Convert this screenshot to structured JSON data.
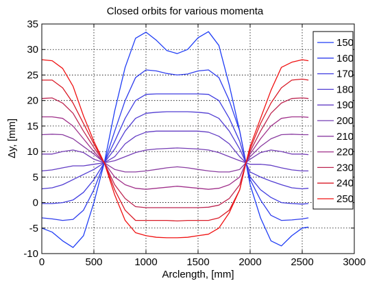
{
  "chart_data": {
    "type": "line",
    "title": "Closed orbits for various momenta",
    "xlabel": "Arclength, [mm]",
    "ylabel": "Δy, [mm]",
    "xlim": [
      0,
      3000
    ],
    "ylim": [
      -10,
      35
    ],
    "xticks": [
      0,
      500,
      1000,
      1500,
      2000,
      2500,
      3000
    ],
    "yticks": [
      -10,
      -5,
      0,
      5,
      10,
      15,
      20,
      25,
      30,
      35
    ],
    "grid": true,
    "legend_position": "right",
    "x": [
      0,
      100,
      200,
      300,
      400,
      500,
      600,
      700,
      800,
      900,
      1000,
      1100,
      1200,
      1300,
      1400,
      1500,
      1600,
      1700,
      1800,
      1900,
      1960,
      2000,
      2100,
      2200,
      2300,
      2400,
      2500,
      2560
    ],
    "series": [
      {
        "name": "150",
        "color": "#1e3cf5",
        "values": [
          -5.0,
          -5.8,
          -7.5,
          -8.8,
          -6.5,
          0.0,
          7.8,
          18.0,
          26.5,
          32.2,
          33.4,
          31.8,
          29.8,
          29.2,
          30.0,
          32.3,
          33.5,
          30.8,
          23.0,
          14.0,
          7.8,
          3.5,
          -3.0,
          -7.5,
          -8.5,
          -6.5,
          -5.0,
          -4.8
        ]
      },
      {
        "name": "160",
        "color": "#2e3ced",
        "values": [
          -3.0,
          -3.2,
          -3.5,
          -3.3,
          -1.5,
          2.5,
          7.8,
          14.0,
          20.0,
          24.5,
          26.0,
          25.8,
          25.3,
          25.0,
          25.2,
          25.8,
          26.0,
          24.5,
          20.0,
          14.0,
          7.8,
          4.5,
          0.5,
          -2.5,
          -3.5,
          -3.4,
          -3.2,
          -3.0
        ]
      },
      {
        "name": "170",
        "color": "#3f3ce0",
        "values": [
          -0.2,
          -0.2,
          0.0,
          0.5,
          2.0,
          4.5,
          7.8,
          12.0,
          16.5,
          20.0,
          21.2,
          21.3,
          21.3,
          21.3,
          21.3,
          21.3,
          21.2,
          20.0,
          16.5,
          12.0,
          7.8,
          5.0,
          2.5,
          1.0,
          0.0,
          -0.2,
          -0.3,
          -0.2
        ]
      },
      {
        "name": "180",
        "color": "#503cd2",
        "values": [
          2.7,
          2.9,
          3.5,
          4.5,
          5.5,
          6.5,
          7.8,
          10.5,
          14.0,
          16.5,
          17.5,
          17.7,
          17.8,
          17.8,
          17.8,
          17.7,
          17.5,
          16.5,
          14.0,
          10.5,
          7.8,
          6.0,
          5.0,
          4.2,
          3.5,
          2.9,
          2.7,
          2.8
        ]
      },
      {
        "name": "190",
        "color": "#623cc4",
        "values": [
          6.2,
          6.4,
          6.8,
          7.2,
          7.2,
          7.5,
          7.8,
          9.0,
          11.5,
          13.0,
          13.8,
          14.0,
          14.0,
          14.0,
          14.0,
          14.0,
          13.8,
          13.0,
          11.5,
          9.0,
          7.8,
          7.5,
          7.5,
          7.3,
          6.8,
          6.4,
          6.2,
          6.2
        ]
      },
      {
        "name": "200",
        "color": "#743cb5",
        "values": [
          9.5,
          9.5,
          10.0,
          10.3,
          9.8,
          8.5,
          7.8,
          8.2,
          9.0,
          9.8,
          10.3,
          10.5,
          10.6,
          10.7,
          10.6,
          10.5,
          10.3,
          9.8,
          9.0,
          8.2,
          7.8,
          8.5,
          9.8,
          10.3,
          10.0,
          9.5,
          9.5,
          9.4
        ]
      },
      {
        "name": "210",
        "color": "#8a3ca0",
        "values": [
          13.3,
          13.4,
          13.3,
          12.5,
          11.0,
          9.5,
          7.8,
          6.5,
          6.0,
          6.0,
          6.2,
          6.5,
          6.8,
          7.0,
          6.8,
          6.5,
          6.2,
          6.0,
          6.0,
          6.5,
          7.8,
          9.0,
          11.0,
          12.5,
          13.3,
          13.4,
          13.3,
          13.3
        ]
      },
      {
        "name": "220",
        "color": "#a0308a",
        "values": [
          16.8,
          16.8,
          16.5,
          15.0,
          12.5,
          10.0,
          7.8,
          5.0,
          3.5,
          2.8,
          2.6,
          2.8,
          3.0,
          3.2,
          3.0,
          2.8,
          2.6,
          2.8,
          3.5,
          5.0,
          7.8,
          9.5,
          12.5,
          15.0,
          16.5,
          16.8,
          16.8,
          16.7
        ]
      },
      {
        "name": "230",
        "color": "#bd2550",
        "values": [
          20.4,
          20.5,
          19.5,
          17.5,
          14.0,
          10.8,
          7.8,
          3.5,
          0.8,
          -0.8,
          -1.0,
          -1.0,
          -1.0,
          -1.0,
          -1.0,
          -1.0,
          -0.9,
          -0.5,
          0.8,
          3.5,
          7.8,
          10.0,
          14.0,
          17.5,
          19.5,
          20.4,
          20.5,
          20.4
        ]
      },
      {
        "name": "240",
        "color": "#d91a26",
        "values": [
          24.0,
          24.0,
          22.5,
          19.5,
          15.5,
          11.5,
          7.8,
          2.5,
          -1.5,
          -3.5,
          -3.5,
          -3.5,
          -3.5,
          -3.6,
          -3.5,
          -3.5,
          -3.5,
          -3.0,
          -1.5,
          2.5,
          7.8,
          10.5,
          15.5,
          19.5,
          22.5,
          24.0,
          24.2,
          24.0
        ]
      },
      {
        "name": "250",
        "color": "#f01010",
        "values": [
          28.0,
          27.8,
          26.3,
          22.8,
          17.0,
          12.0,
          7.8,
          1.5,
          -3.5,
          -5.9,
          -6.5,
          -6.8,
          -6.9,
          -6.9,
          -6.8,
          -6.5,
          -6.2,
          -5.0,
          -2.0,
          2.5,
          7.8,
          11.0,
          16.5,
          22.0,
          26.5,
          27.5,
          28.0,
          27.8
        ]
      }
    ]
  }
}
